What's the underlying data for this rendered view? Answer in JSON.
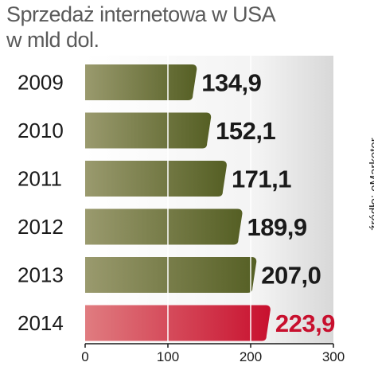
{
  "title_line1": "Sprzedaż internetowa w USA",
  "title_line2": "w mld dol.",
  "source": "źródło: eMarketer",
  "colors": {
    "bar_dark": "#555f24",
    "bar_light": "#9a9a6e",
    "highlight_dark": "#c8102e",
    "highlight_light": "#e07c80",
    "highlight_label": "#c8102e",
    "label": "#1a1a1a",
    "year": "#1a1a1a"
  },
  "chart_data": {
    "type": "bar",
    "orientation": "horizontal",
    "categories": [
      "2009",
      "2010",
      "2011",
      "2012",
      "2013",
      "2014"
    ],
    "values": [
      134.9,
      152.1,
      171.1,
      189.9,
      207.0,
      223.9
    ],
    "value_labels": [
      "134,9",
      "152,1",
      "171,1",
      "189,9",
      "207,0",
      "223,9"
    ],
    "highlight_index": 5,
    "xlim": [
      0,
      300
    ],
    "xticks": [
      0,
      100,
      200,
      300
    ],
    "grid": true
  }
}
